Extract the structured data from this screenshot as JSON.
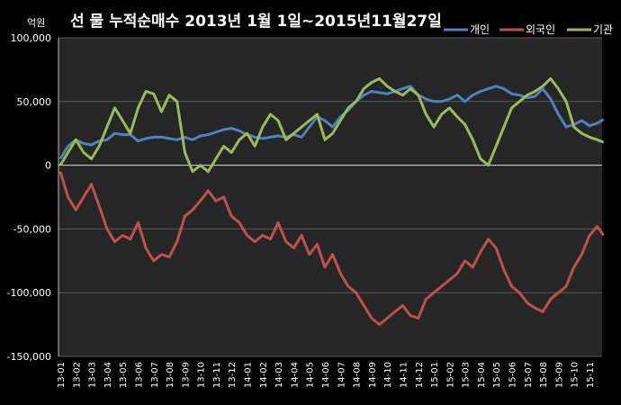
{
  "chart_data": {
    "type": "line",
    "title": "선 물 누적순매수 2013년 1월 1일~2015년11월27일",
    "ylabel": "억원",
    "xlabel": "",
    "ylim": [
      -150000,
      100000
    ],
    "yticks": [
      -150000,
      -100000,
      -50000,
      0,
      50000,
      100000
    ],
    "ytick_labels": [
      "-150,000",
      "-100,000",
      "-50,000",
      "0",
      "50,000",
      "100,000"
    ],
    "grid": "horizontal",
    "legend": "top-right",
    "x_labels": [
      "13-01",
      "13-02",
      "13-03",
      "13-04",
      "13-05",
      "13-06",
      "13-07",
      "13-08",
      "13-09",
      "13-10",
      "13-11",
      "13-12",
      "14-01",
      "14-02",
      "14-03",
      "14-04",
      "14-05",
      "14-06",
      "14-07",
      "14-08",
      "14-09",
      "14-10",
      "14-11",
      "14-12",
      "15-01",
      "15-02",
      "15-03",
      "15-04",
      "15-05",
      "15-06",
      "15-07",
      "15-08",
      "15-09",
      "15-10",
      "15-11"
    ],
    "x": [
      0,
      0.5,
      1,
      1.5,
      2,
      2.5,
      3,
      3.5,
      4,
      4.5,
      5,
      5.5,
      6,
      6.5,
      7,
      7.5,
      8,
      8.5,
      9,
      9.5,
      10,
      10.5,
      11,
      11.5,
      12,
      12.5,
      13,
      13.5,
      14,
      14.5,
      15,
      15.5,
      16,
      16.5,
      17,
      17.5,
      18,
      18.5,
      19,
      19.5,
      20,
      20.5,
      21,
      21.5,
      22,
      22.5,
      23,
      23.5,
      24,
      24.5,
      25,
      25.5,
      26,
      26.5,
      27,
      27.5,
      28,
      28.5,
      29,
      29.5,
      30,
      30.5,
      31,
      31.5,
      32,
      32.5,
      33,
      33.5,
      34,
      34.5,
      34.9
    ],
    "series": [
      {
        "name": "개인",
        "color": "#4F81BD",
        "values": [
          5000,
          15000,
          20000,
          17000,
          16000,
          19000,
          20000,
          25000,
          24000,
          24000,
          19000,
          21000,
          22000,
          22000,
          21000,
          20000,
          22000,
          20000,
          23000,
          24000,
          26000,
          28000,
          29000,
          27000,
          24000,
          22000,
          21000,
          22000,
          23000,
          22000,
          24000,
          22000,
          30000,
          38000,
          35000,
          30000,
          38000,
          43000,
          50000,
          55000,
          58000,
          57000,
          56000,
          58000,
          60000,
          62000,
          55000,
          52000,
          50000,
          50000,
          52000,
          55000,
          50000,
          55000,
          58000,
          60000,
          62000,
          60000,
          56000,
          55000,
          53000,
          54000,
          60000,
          52000,
          40000,
          30000,
          32000,
          35000,
          31000,
          33000,
          36000
        ]
      },
      {
        "name": "외국인",
        "color": "#C0504D",
        "values": [
          -5000,
          -25000,
          -35000,
          -25000,
          -15000,
          -32000,
          -50000,
          -60000,
          -55000,
          -58000,
          -45000,
          -65000,
          -75000,
          -70000,
          -72000,
          -60000,
          -40000,
          -35000,
          -28000,
          -20000,
          -28000,
          -25000,
          -40000,
          -45000,
          -55000,
          -60000,
          -55000,
          -58000,
          -45000,
          -60000,
          -65000,
          -55000,
          -70000,
          -62000,
          -80000,
          -70000,
          -85000,
          -95000,
          -100000,
          -110000,
          -120000,
          -125000,
          -120000,
          -115000,
          -110000,
          -118000,
          -120000,
          -105000,
          -100000,
          -95000,
          -90000,
          -85000,
          -75000,
          -80000,
          -68000,
          -58000,
          -65000,
          -82000,
          -95000,
          -100000,
          -108000,
          -112000,
          -115000,
          -105000,
          -100000,
          -95000,
          -80000,
          -70000,
          -55000,
          -48000,
          -55000
        ]
      },
      {
        "name": "기관",
        "color": "#9BBB59",
        "values": [
          0,
          10000,
          20000,
          10000,
          5000,
          15000,
          30000,
          45000,
          35000,
          25000,
          45000,
          58000,
          56000,
          42000,
          55000,
          50000,
          10000,
          -5000,
          0,
          -5000,
          5000,
          15000,
          10000,
          20000,
          25000,
          15000,
          30000,
          40000,
          35000,
          20000,
          25000,
          30000,
          35000,
          40000,
          20000,
          25000,
          35000,
          45000,
          50000,
          60000,
          65000,
          68000,
          62000,
          58000,
          55000,
          60000,
          55000,
          40000,
          30000,
          40000,
          45000,
          38000,
          32000,
          20000,
          5000,
          0,
          15000,
          30000,
          45000,
          50000,
          55000,
          58000,
          62000,
          68000,
          60000,
          50000,
          30000,
          25000,
          22000,
          20000,
          18000
        ]
      }
    ]
  }
}
